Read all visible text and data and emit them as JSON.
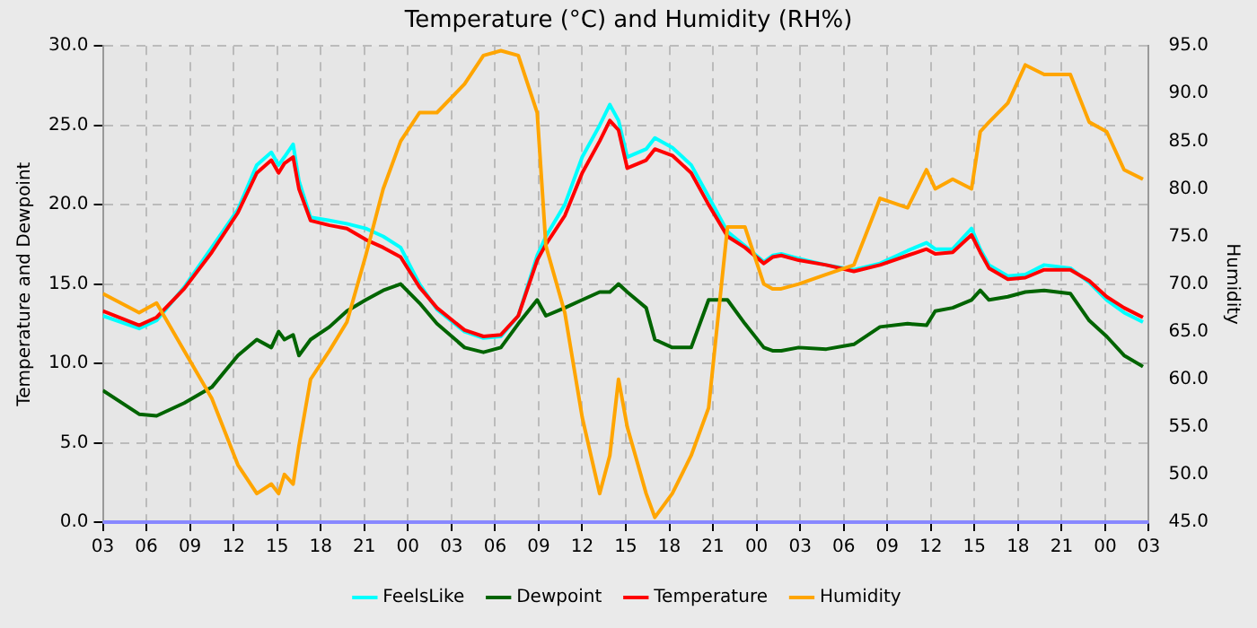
{
  "chart_data": {
    "type": "line",
    "title": "Temperature (°C) and Humidity (RH%)",
    "ylabel": "Temperature and Dewpoint",
    "y2label": "Humidity",
    "x": [
      3,
      5.5,
      6.7,
      8.6,
      10.5,
      12.3,
      13.6,
      14.6,
      15.1,
      15.5,
      16.1,
      16.5,
      17.3,
      18.6,
      19.8,
      21.1,
      22.3,
      23.5,
      24.8,
      26.0,
      27.9,
      29.2,
      30.4,
      31.6,
      32.9,
      33.5,
      34.8,
      36.0,
      37.2,
      37.9,
      38.5,
      39.1,
      40.4,
      41.0,
      42.2,
      43.5,
      44.7,
      46.0,
      47.2,
      48.5,
      49.1,
      49.7,
      50.9,
      52.8,
      54.7,
      56.5,
      58.4,
      59.7,
      60.3,
      61.5,
      62.8,
      63.4,
      64.0,
      65.3,
      66.5,
      67.8,
      69.6,
      70.9,
      72.1,
      73.3,
      74.6
    ],
    "xlim": [
      3,
      75
    ],
    "xticks": [
      {
        "value": 3,
        "label": "03"
      },
      {
        "value": 6,
        "label": "06"
      },
      {
        "value": 9,
        "label": "09"
      },
      {
        "value": 12,
        "label": "12"
      },
      {
        "value": 15,
        "label": "15"
      },
      {
        "value": 18,
        "label": "18"
      },
      {
        "value": 21,
        "label": "21"
      },
      {
        "value": 24,
        "label": "00"
      },
      {
        "value": 27,
        "label": "03"
      },
      {
        "value": 30,
        "label": "06"
      },
      {
        "value": 33,
        "label": "09"
      },
      {
        "value": 36,
        "label": "12"
      },
      {
        "value": 39,
        "label": "15"
      },
      {
        "value": 42,
        "label": "18"
      },
      {
        "value": 45,
        "label": "21"
      },
      {
        "value": 48,
        "label": "00"
      },
      {
        "value": 51,
        "label": "03"
      },
      {
        "value": 54,
        "label": "06"
      },
      {
        "value": 57,
        "label": "09"
      },
      {
        "value": 60,
        "label": "12"
      },
      {
        "value": 63,
        "label": "15"
      },
      {
        "value": 66,
        "label": "18"
      },
      {
        "value": 69,
        "label": "21"
      },
      {
        "value": 72,
        "label": "00"
      },
      {
        "value": 75,
        "label": "03"
      }
    ],
    "ylim": [
      0,
      30
    ],
    "yticks": [
      {
        "value": 0,
        "label": "0.0"
      },
      {
        "value": 5,
        "label": "5.0"
      },
      {
        "value": 10,
        "label": "10.0"
      },
      {
        "value": 15,
        "label": "15.0"
      },
      {
        "value": 20,
        "label": "20.0"
      },
      {
        "value": 25,
        "label": "25.0"
      },
      {
        "value": 30,
        "label": "30.0"
      }
    ],
    "y2lim": [
      45,
      95
    ],
    "y2ticks": [
      {
        "value": 45,
        "label": "45.0"
      },
      {
        "value": 50,
        "label": "50.0"
      },
      {
        "value": 55,
        "label": "55.0"
      },
      {
        "value": 60,
        "label": "60.0"
      },
      {
        "value": 65,
        "label": "65.0"
      },
      {
        "value": 70,
        "label": "70.0"
      },
      {
        "value": 75,
        "label": "75.0"
      },
      {
        "value": 80,
        "label": "80.0"
      },
      {
        "value": 85,
        "label": "85.0"
      },
      {
        "value": 90,
        "label": "90.0"
      },
      {
        "value": 95,
        "label": "95.0"
      }
    ],
    "grid": true,
    "legend": "bottom",
    "marker": "none",
    "line_style": "solid",
    "series": [
      {
        "name": "FeelsLike",
        "color": "#00ffff",
        "values": [
          13.0,
          12.2,
          12.7,
          14.8,
          17.3,
          19.7,
          22.5,
          23.3,
          22.5,
          23.0,
          23.8,
          21.5,
          19.2,
          19.0,
          18.8,
          18.5,
          18.0,
          17.3,
          15.0,
          13.4,
          12.0,
          11.6,
          11.7,
          13.0,
          16.8,
          18.0,
          20.0,
          23.0,
          25.0,
          26.3,
          25.3,
          23.0,
          23.5,
          24.2,
          23.6,
          22.5,
          20.5,
          18.3,
          17.4,
          16.4,
          16.8,
          16.9,
          16.6,
          16.2,
          15.9,
          16.3,
          17.1,
          17.6,
          17.2,
          17.2,
          18.5,
          17.2,
          16.2,
          15.5,
          15.6,
          16.2,
          16.0,
          15.1,
          14.0,
          13.2,
          12.6
        ]
      },
      {
        "name": "Dewpoint",
        "color": "#006400",
        "values": [
          8.3,
          6.8,
          6.7,
          7.5,
          8.5,
          10.5,
          11.5,
          11.0,
          12.0,
          11.5,
          11.8,
          10.5,
          11.5,
          12.3,
          13.3,
          14.0,
          14.6,
          15.0,
          13.8,
          12.5,
          11.0,
          10.7,
          11.0,
          12.5,
          14.0,
          13.0,
          13.5,
          14.0,
          14.5,
          14.5,
          15.0,
          14.5,
          13.5,
          11.5,
          11.0,
          11.0,
          14.0,
          14.0,
          12.5,
          11.0,
          10.8,
          10.8,
          11.0,
          10.9,
          11.2,
          12.3,
          12.5,
          12.4,
          13.3,
          13.5,
          14.0,
          14.6,
          14.0,
          14.2,
          14.5,
          14.6,
          14.4,
          12.7,
          11.7,
          10.5,
          9.8
        ]
      },
      {
        "name": "Temperature",
        "color": "#ff0000",
        "values": [
          13.3,
          12.4,
          12.9,
          14.7,
          17.0,
          19.5,
          22.0,
          22.8,
          22.0,
          22.6,
          23.0,
          21.0,
          19.0,
          18.7,
          18.5,
          17.8,
          17.3,
          16.7,
          14.8,
          13.5,
          12.1,
          11.7,
          11.8,
          13.0,
          16.5,
          17.5,
          19.3,
          22.0,
          24.0,
          25.3,
          24.7,
          22.3,
          22.8,
          23.5,
          23.1,
          22.0,
          20.0,
          18.0,
          17.3,
          16.3,
          16.7,
          16.8,
          16.5,
          16.2,
          15.8,
          16.2,
          16.8,
          17.2,
          16.9,
          17.0,
          18.1,
          17.0,
          16.0,
          15.3,
          15.4,
          15.9,
          15.9,
          15.2,
          14.2,
          13.5,
          12.9
        ]
      },
      {
        "name": "Humidity",
        "color": "#ffa500",
        "axis": "y2",
        "values": [
          69,
          67,
          68,
          63,
          58,
          51,
          48,
          49,
          48,
          50,
          49,
          53,
          60,
          63,
          66,
          73,
          80,
          85,
          88,
          88,
          91,
          94,
          94.5,
          94,
          88,
          74,
          67,
          56,
          48,
          52,
          60,
          55,
          48,
          45.5,
          48,
          52,
          57,
          76,
          76,
          70,
          69.5,
          69.5,
          70,
          71,
          72,
          79,
          78,
          82,
          80,
          81,
          80,
          86,
          87,
          89,
          93,
          92,
          92,
          87,
          86,
          82,
          81
        ]
      }
    ]
  }
}
